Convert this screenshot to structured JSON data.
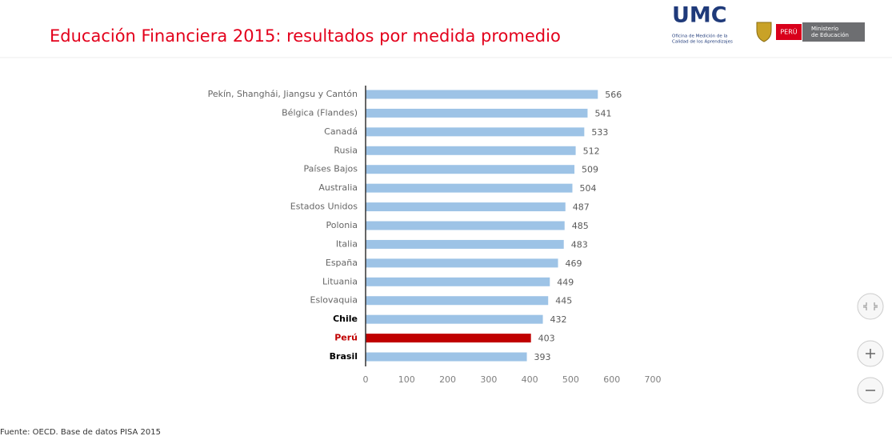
{
  "header": {
    "title": "Educación Financiera 2015: resultados por medida promedio",
    "logo_umc": "UMC",
    "logo_umc_sub1": "Oficina de Medición de la",
    "logo_umc_sub2": "Calidad de los Aprendizajes",
    "logo_peru": "PERÚ",
    "logo_min1": "Ministerio",
    "logo_min2": "de Educación"
  },
  "chart_data": {
    "type": "bar",
    "orientation": "horizontal",
    "categories": [
      "Pekín, Shanghái, Jiangsu y Cantón",
      "Bélgica (Flandes)",
      "Canadá",
      "Rusia",
      "Países Bajos",
      "Australia",
      "Estados Unidos",
      "Polonia",
      "Italia",
      "España",
      "Lituania",
      "Eslovaquia",
      "Chile",
      "Perú",
      "Brasil"
    ],
    "values": [
      566,
      541,
      533,
      512,
      509,
      504,
      487,
      485,
      483,
      469,
      449,
      445,
      432,
      403,
      393
    ],
    "color": "#9dc3e6",
    "highlight_index": 13,
    "highlight_color": "#c00000",
    "bold_indices": [
      12,
      13,
      14
    ],
    "xlim": [
      0,
      700
    ],
    "xticks": [
      0,
      100,
      200,
      300,
      400,
      500,
      600,
      700
    ],
    "grid": false
  },
  "footer": {
    "source": "Fuente: OECD. Base de datos PISA 2015"
  }
}
